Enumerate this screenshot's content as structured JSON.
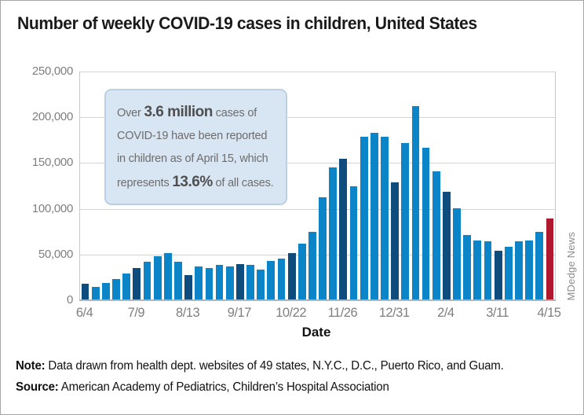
{
  "page": {
    "title": "Number of weekly COVID-19 cases in children, United States",
    "watermark": "MDedge News",
    "note_label": "Note:",
    "note_text": " Data drawn from health dept. websites of 49 states, N.Y.C., D.C., Puerto Rico, and Guam.",
    "source_label": "Source:",
    "source_text": " American Academy of Pediatrics, Children’s Hospital Association"
  },
  "callout": {
    "line1_pre": "Over ",
    "line1_bold": "3.6 million",
    "line1_post": " cases of",
    "line2": "COVID-19 have been reported",
    "line3": "in children as of April 15, which",
    "line4_pre": "represents ",
    "line4_bold": "13.6%",
    "line4_post": " of all cases."
  },
  "chart_data": {
    "type": "bar",
    "title": "Number of weekly COVID-19 cases in children, United States",
    "xlabel": "Date",
    "ylabel": "",
    "ylim": [
      0,
      250000
    ],
    "grid": "horizontal",
    "ytick_values": [
      0,
      50000,
      100000,
      150000,
      200000,
      250000
    ],
    "ytick_labels": [
      "0",
      "50,000",
      "100,000",
      "150,000",
      "200,000",
      "250,000"
    ],
    "x_tick_labels": [
      "6/4",
      "7/9",
      "8/13",
      "9/17",
      "10/22",
      "11/26",
      "12/31",
      "2/4",
      "3/11",
      "4/15"
    ],
    "tick_every_n_bars": 5,
    "categories_note": "46 weekly bars from 6/4/2020 to 4/15/2021; a tick label under every 5th bar",
    "values": [
      17500,
      14000,
      18000,
      22500,
      28000,
      34500,
      41500,
      47000,
      51000,
      41500,
      26500,
      36500,
      34000,
      38000,
      36500,
      39000,
      37500,
      33000,
      42000,
      45000,
      50500,
      61000,
      73500,
      112000,
      144000,
      154000,
      124000,
      178000,
      182000,
      178000,
      128000,
      171000,
      211500,
      165500,
      140000,
      117500,
      99500,
      70500,
      64500,
      64000,
      53500,
      57500,
      64000,
      64500,
      73500,
      88500
    ],
    "colors": {
      "light_blue": "#0b85c7",
      "dark_navy": "#0e4c7d",
      "red": "#b0182e"
    },
    "color_rule": "bars under a date tick (every 5th, starting with the first) are dark navy; the final bar (4/15) is red; all others light blue",
    "legend": "none"
  }
}
